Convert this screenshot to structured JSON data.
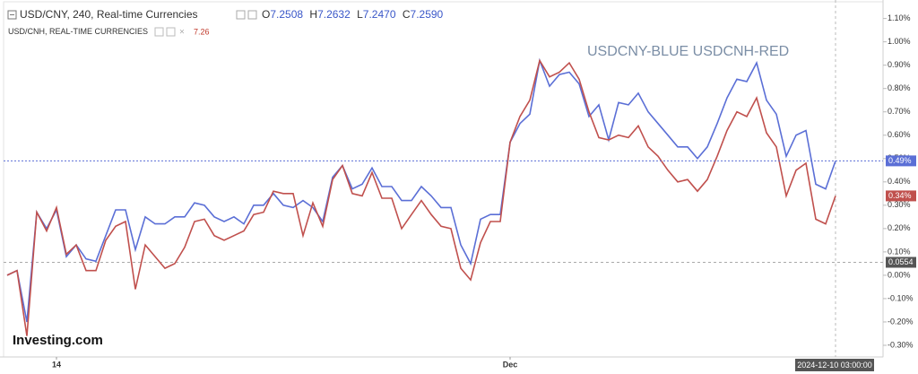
{
  "chart_data": {
    "type": "line",
    "header": {
      "main_details": ", 240, Real-time Currencies",
      "ohlc": [
        {
          "key": "O",
          "value": "7.2508"
        },
        {
          "key": "H",
          "value": "7.2632"
        },
        {
          "key": "L",
          "value": "7.2470"
        },
        {
          "key": "C",
          "value": "7.2590"
        }
      ],
      "compare_details": ", REAL-TIME CURRENCIES",
      "compare_value": "7.26"
    },
    "annotation": "USDCNY-BLUE USDCNH-RED",
    "watermark": "Investing.com",
    "categories": [
      null,
      null,
      null,
      null,
      null,
      "14",
      null,
      null,
      null,
      null,
      null,
      null,
      null,
      null,
      null,
      null,
      null,
      null,
      null,
      null,
      null,
      null,
      null,
      null,
      null,
      null,
      null,
      null,
      null,
      null,
      null,
      null,
      null,
      null,
      null,
      null,
      null,
      null,
      null,
      null,
      null,
      null,
      null,
      null,
      null,
      null,
      null,
      null,
      null,
      null,
      null,
      "Dec",
      null,
      null,
      null,
      null,
      null,
      null,
      null,
      null,
      null,
      null,
      null,
      null,
      null,
      null,
      null,
      null,
      null,
      null,
      null,
      null,
      null,
      null,
      null,
      null,
      null,
      null,
      null,
      null,
      null,
      null,
      null,
      null,
      null
    ],
    "series": [
      {
        "name": "USD/CNY",
        "color": "#5b6fd6",
        "last_label": "0.49%",
        "values": [
          0.0,
          0.02,
          -0.2,
          0.27,
          0.2,
          0.28,
          0.08,
          0.13,
          0.07,
          0.06,
          0.17,
          0.28,
          0.28,
          0.11,
          0.25,
          0.22,
          0.22,
          0.25,
          0.25,
          0.31,
          0.3,
          0.25,
          0.23,
          0.25,
          0.22,
          0.3,
          0.3,
          0.35,
          0.3,
          0.29,
          0.32,
          0.29,
          0.23,
          0.42,
          0.47,
          0.37,
          0.39,
          0.46,
          0.38,
          0.38,
          0.32,
          0.32,
          0.38,
          0.34,
          0.29,
          0.29,
          0.13,
          0.05,
          0.24,
          0.26,
          0.26,
          0.57,
          0.65,
          0.69,
          0.92,
          0.81,
          0.86,
          0.87,
          0.82,
          0.68,
          0.73,
          0.58,
          0.74,
          0.73,
          0.78,
          0.7,
          0.65,
          0.6,
          0.55,
          0.55,
          0.5,
          0.55,
          0.65,
          0.76,
          0.84,
          0.83,
          0.91,
          0.75,
          0.69,
          0.51,
          0.6,
          0.62,
          0.39,
          0.37,
          0.49
        ]
      },
      {
        "name": "USD/CNH",
        "color": "#c0504d",
        "last_label": "0.34%",
        "values": [
          0.0,
          0.02,
          -0.26,
          0.27,
          0.19,
          0.29,
          0.09,
          0.13,
          0.02,
          0.02,
          0.15,
          0.21,
          0.23,
          -0.06,
          0.13,
          0.08,
          0.03,
          0.05,
          0.12,
          0.23,
          0.24,
          0.17,
          0.15,
          0.17,
          0.19,
          0.26,
          0.27,
          0.36,
          0.35,
          0.35,
          0.17,
          0.31,
          0.21,
          0.41,
          0.47,
          0.35,
          0.34,
          0.44,
          0.33,
          0.33,
          0.2,
          0.26,
          0.32,
          0.26,
          0.21,
          0.2,
          0.03,
          -0.02,
          0.14,
          0.23,
          0.23,
          0.57,
          0.68,
          0.75,
          0.92,
          0.85,
          0.87,
          0.91,
          0.84,
          0.7,
          0.59,
          0.58,
          0.6,
          0.59,
          0.64,
          0.55,
          0.51,
          0.45,
          0.4,
          0.41,
          0.36,
          0.41,
          0.51,
          0.62,
          0.7,
          0.68,
          0.76,
          0.61,
          0.55,
          0.34,
          0.45,
          0.48,
          0.24,
          0.22,
          0.34
        ]
      }
    ],
    "reference_line": 0.0554,
    "crosshair_label": "2024-12-10 03:00:00",
    "ylim": [
      -0.35,
      1.16
    ],
    "yticks": [
      {
        "value": -0.3,
        "label": "-0.30%"
      },
      {
        "value": -0.2,
        "label": "-0.20%"
      },
      {
        "value": -0.1,
        "label": "-0.10%"
      },
      {
        "value": 0,
        "label": "0.00%"
      },
      {
        "value": 0.1,
        "label": "0.10%"
      },
      {
        "value": 0.2,
        "label": "0.20%"
      },
      {
        "value": 0.3,
        "label": "0.30%"
      },
      {
        "value": 0.4,
        "label": "0.40%"
      },
      {
        "value": 0.5,
        "label": "0.50%"
      },
      {
        "value": 0.6,
        "label": "0.60%"
      },
      {
        "value": 0.7,
        "label": "0.70%"
      },
      {
        "value": 0.8,
        "label": "0.80%"
      },
      {
        "value": 0.9,
        "label": "0.90%"
      },
      {
        "value": 1.0,
        "label": "1.00%"
      },
      {
        "value": 1.1,
        "label": "1.10%"
      }
    ],
    "grid": false
  }
}
